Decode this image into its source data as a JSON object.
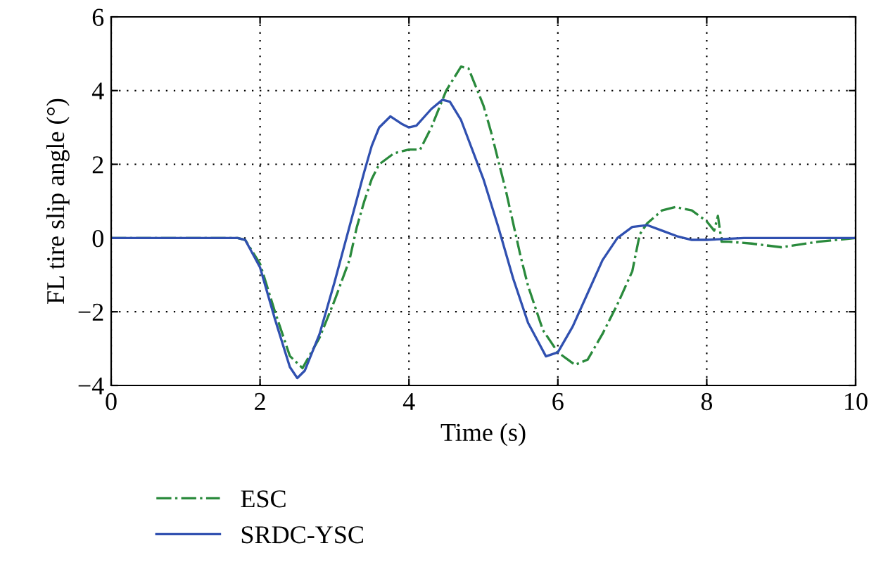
{
  "chart_data": {
    "type": "line",
    "xlabel": "Time (s)",
    "ylabel": "FL tire slip angle (°)",
    "xlim": [
      0,
      10
    ],
    "ylim": [
      -4,
      6
    ],
    "xticks": [
      0,
      2,
      4,
      6,
      8,
      10
    ],
    "yticks": [
      -4,
      -2,
      0,
      2,
      4,
      6
    ],
    "grid": true,
    "legend": "bottom left",
    "series": [
      {
        "name": "ESC",
        "color": "#2a8a3c",
        "line_style": "dashdot",
        "x": [
          0,
          1.7,
          1.8,
          2.0,
          2.2,
          2.4,
          2.57,
          2.8,
          3.0,
          3.2,
          3.3,
          3.4,
          3.5,
          3.6,
          3.8,
          4.0,
          4.15,
          4.3,
          4.5,
          4.7,
          4.8,
          5.0,
          5.1,
          5.3,
          5.4,
          5.5,
          5.6,
          5.8,
          6.0,
          6.23,
          6.4,
          6.6,
          6.8,
          7.0,
          7.1,
          7.2,
          7.4,
          7.58,
          7.8,
          8.0,
          8.1,
          8.15,
          8.2,
          8.3,
          8.6,
          9.0,
          9.5,
          10
        ],
        "values": [
          0,
          0,
          -0.05,
          -0.7,
          -2.0,
          -3.2,
          -3.53,
          -2.7,
          -1.7,
          -0.6,
          0.3,
          1.0,
          1.6,
          2.0,
          2.3,
          2.4,
          2.4,
          3.0,
          4.0,
          4.65,
          4.6,
          3.6,
          2.9,
          1.3,
          0.4,
          -0.5,
          -1.3,
          -2.5,
          -3.1,
          -3.44,
          -3.3,
          -2.6,
          -1.8,
          -0.9,
          0.1,
          0.4,
          0.75,
          0.84,
          0.75,
          0.45,
          0.2,
          0.6,
          -0.1,
          -0.1,
          -0.15,
          -0.25,
          -0.1,
          0
        ]
      },
      {
        "name": "SRDC-YSC",
        "color": "#3050b0",
        "line_style": "solid",
        "x": [
          0,
          1.7,
          1.8,
          2.0,
          2.2,
          2.4,
          2.5,
          2.6,
          2.8,
          3.0,
          3.2,
          3.4,
          3.5,
          3.6,
          3.75,
          3.9,
          4.0,
          4.1,
          4.3,
          4.45,
          4.55,
          4.7,
          5.0,
          5.2,
          5.4,
          5.6,
          5.84,
          6.0,
          6.2,
          6.4,
          6.6,
          6.8,
          7.0,
          7.2,
          7.4,
          7.6,
          7.8,
          8.0,
          8.5,
          10
        ],
        "values": [
          0,
          0,
          -0.05,
          -0.8,
          -2.2,
          -3.5,
          -3.8,
          -3.6,
          -2.6,
          -1.2,
          0.3,
          1.8,
          2.5,
          3.0,
          3.3,
          3.1,
          3.0,
          3.05,
          3.5,
          3.75,
          3.7,
          3.2,
          1.6,
          0.3,
          -1.1,
          -2.3,
          -3.21,
          -3.1,
          -2.4,
          -1.5,
          -0.6,
          0.0,
          0.3,
          0.35,
          0.2,
          0.05,
          -0.05,
          -0.05,
          0,
          0
        ]
      }
    ]
  }
}
